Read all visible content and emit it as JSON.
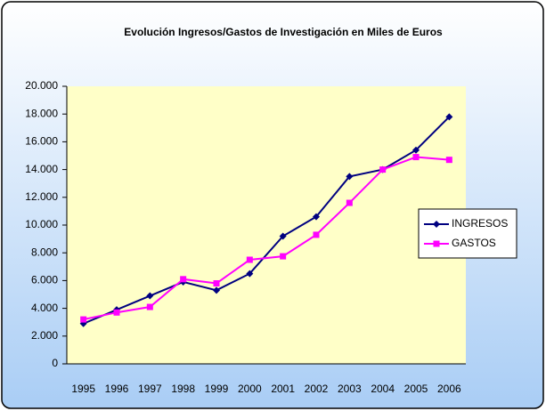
{
  "chart_data": {
    "type": "line",
    "title": "Evolución Ingresos/Gastos de Investigación en Miles de Euros",
    "categories": [
      "1995",
      "1996",
      "1997",
      "1998",
      "1999",
      "2000",
      "2001",
      "2002",
      "2003",
      "2004",
      "2005",
      "2006"
    ],
    "series": [
      {
        "name": "INGRESOS",
        "color": "#000080",
        "marker": "diamond",
        "values": [
          2900,
          3900,
          4900,
          5900,
          5300,
          6500,
          9200,
          10600,
          13500,
          14000,
          15400,
          17800
        ]
      },
      {
        "name": "GASTOS",
        "color": "#ff00ff",
        "marker": "square",
        "values": [
          3200,
          3700,
          4100,
          6100,
          5800,
          7500,
          7750,
          9300,
          11600,
          14000,
          14900,
          14700
        ]
      }
    ],
    "ylim": [
      0,
      20000
    ],
    "yticks": [
      0,
      {
        "value": 2000,
        "label": "2.000"
      },
      {
        "value": 4000,
        "label": "4.000"
      },
      {
        "value": 6000,
        "label": "6.000"
      },
      {
        "value": 8000,
        "label": "8.000"
      },
      {
        "value": 10000,
        "label": "10.000"
      },
      {
        "value": 12000,
        "label": "12.000"
      },
      {
        "value": 14000,
        "label": "14.000"
      },
      {
        "value": 16000,
        "label": "16.000"
      },
      {
        "value": 18000,
        "label": "18.000"
      },
      {
        "value": 20000,
        "label": "20.000"
      }
    ],
    "grid": false,
    "legend": "right"
  }
}
